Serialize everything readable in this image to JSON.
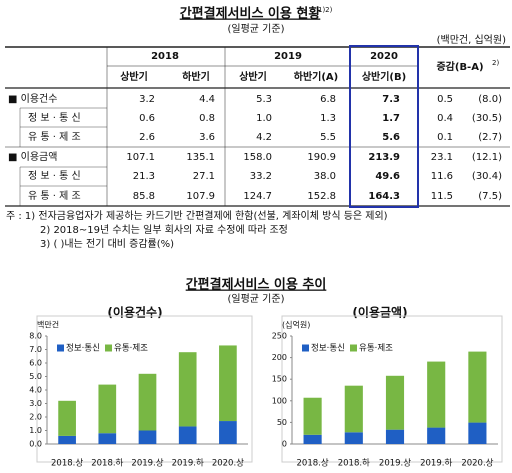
{
  "table_section": {
    "title": "간편결제서비스 이용 현황",
    "title_note": "1)2)",
    "subtitle": "(일평균 기준)",
    "unit": "(백만건, 십억원)",
    "years": [
      "2018",
      "2019",
      "2020"
    ],
    "change_header": "증감(B-A)",
    "change_note": "2)",
    "halves": [
      "상반기",
      "하반기",
      "상반기",
      "하반기(A)",
      "상반기(B)"
    ],
    "rows": [
      {
        "label": "■ 이용건수",
        "cells": [
          "3.2",
          "4.4",
          "5.3",
          "6.8",
          "7.3",
          "0.5",
          "(8.0)"
        ]
      },
      {
        "label": "정 보 · 통 신",
        "cells": [
          "0.6",
          "0.8",
          "1.0",
          "1.3",
          "1.7",
          "0.4",
          "(30.5)"
        ]
      },
      {
        "label": "유 통 · 제 조",
        "cells": [
          "2.6",
          "3.6",
          "4.2",
          "5.5",
          "5.6",
          "0.1",
          "(2.7)"
        ]
      },
      {
        "label": "■ 이용금액",
        "cells": [
          "107.1",
          "135.1",
          "158.0",
          "190.9",
          "213.9",
          "23.1",
          "(12.1)"
        ]
      },
      {
        "label": "정 보 · 통 신",
        "cells": [
          "21.3",
          "27.1",
          "33.2",
          "38.0",
          "49.6",
          "11.6",
          "(30.4)"
        ]
      },
      {
        "label": "유 통 · 제 조",
        "cells": [
          "85.8",
          "107.9",
          "124.7",
          "152.8",
          "164.3",
          "11.5",
          "(7.5)"
        ]
      }
    ],
    "notes": [
      "주 : 1) 전자금융업자가 제공하는 카드기반 간편결제에 한함(선불, 계좌이체 방식 등은 제외)",
      "2) 2018~19년 수치는 일부 회사의 자료 수정에 따라 조정",
      "3) ( )내는 전기 대비 증감률(%)"
    ]
  },
  "charts_section": {
    "title": "간편결제서비스 이용 추이",
    "subtitle": "(일평균 기준)"
  },
  "chart_data": [
    {
      "type": "bar",
      "stacked": true,
      "title": "(이용건수)",
      "unit_label": "백만건",
      "legend": "upper left",
      "categories": [
        "2018.상",
        "2018.하",
        "2019.상",
        "2019.하",
        "2020.상"
      ],
      "series": [
        {
          "name": "정보·통신",
          "color": "#1f5fc4",
          "values": [
            0.6,
            0.8,
            1.0,
            1.3,
            1.7
          ]
        },
        {
          "name": "유통·제조",
          "color": "#78b744",
          "values": [
            2.6,
            3.6,
            4.2,
            5.5,
            5.6
          ]
        }
      ],
      "ylim": [
        0,
        8
      ],
      "yticks": [
        {
          "value": 0,
          "label": "0.0"
        },
        {
          "value": 1,
          "label": "1.0"
        },
        {
          "value": 2,
          "label": "2.0"
        },
        {
          "value": 3,
          "label": "3.0"
        },
        {
          "value": 4,
          "label": "4.0"
        },
        {
          "value": 5,
          "label": "5.0"
        },
        {
          "value": 6,
          "label": "6.0"
        },
        {
          "value": 7,
          "label": "7.0"
        },
        {
          "value": 8,
          "label": "8.0"
        }
      ]
    },
    {
      "type": "bar",
      "stacked": true,
      "title": "(이용금액)",
      "unit_label": "(십억원)",
      "legend": "upper left",
      "categories": [
        "2018.상",
        "2018.하",
        "2019.상",
        "2019.하",
        "2020.상"
      ],
      "series": [
        {
          "name": "정보·통신",
          "color": "#1f5fc4",
          "values": [
            21.3,
            27.1,
            33.2,
            38.0,
            49.6
          ]
        },
        {
          "name": "유통·제조",
          "color": "#78b744",
          "values": [
            85.8,
            107.9,
            124.7,
            152.8,
            164.3
          ]
        }
      ],
      "ylim": [
        0,
        250
      ],
      "yticks": [
        0,
        50,
        100,
        150,
        200,
        250
      ]
    }
  ]
}
